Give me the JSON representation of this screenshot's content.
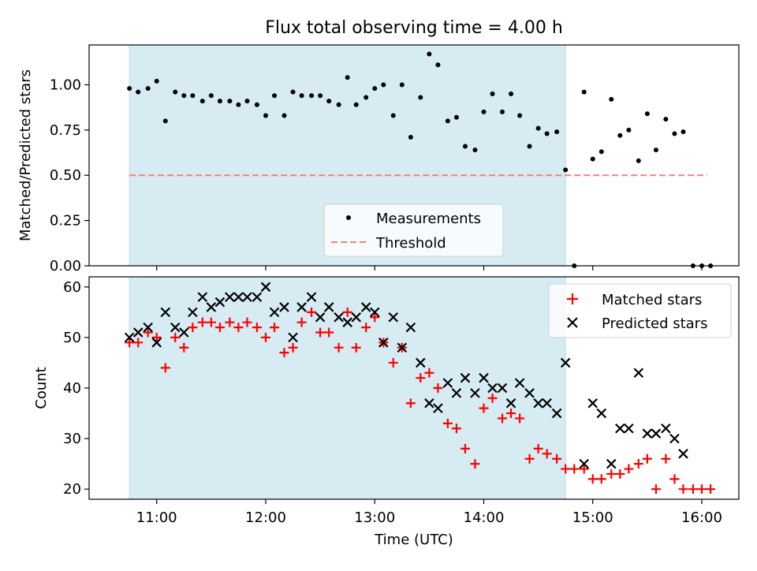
{
  "chart_data": {
    "type": "scatter",
    "title": "Flux total observing time = 4.00 h",
    "xlabel": "Time (UTC)",
    "x_unit": "decimal hours UTC",
    "xlim": [
      10.38,
      16.34
    ],
    "x_ticks": [
      {
        "value": 11,
        "label": "11:00"
      },
      {
        "value": 12,
        "label": "12:00"
      },
      {
        "value": 13,
        "label": "13:00"
      },
      {
        "value": 14,
        "label": "14:00"
      },
      {
        "value": 15,
        "label": "15:00"
      },
      {
        "value": 16,
        "label": "16:00"
      }
    ],
    "observing_window": {
      "start": 10.75,
      "end": 14.75,
      "color": "#add8e6"
    },
    "panels": [
      {
        "id": "ratio",
        "ylabel": "Matched/Predicted stars",
        "ylim": [
          0,
          1.22
        ],
        "y_ticks": [
          {
            "value": 0,
            "label": "0.00"
          },
          {
            "value": 0.25,
            "label": "0.25"
          },
          {
            "value": 0.5,
            "label": "0.50"
          },
          {
            "value": 0.75,
            "label": "0.75"
          },
          {
            "value": 1.0,
            "label": "1.00"
          }
        ],
        "legend": {
          "position": "lower-center",
          "entries": [
            "Measurements",
            "Threshold"
          ]
        },
        "threshold": {
          "name": "Threshold",
          "value": 0.5,
          "x_start": 10.75,
          "x_end": 16.05,
          "color": "#f08080"
        },
        "series": [
          {
            "name": "Measurements",
            "color": "#000000",
            "marker": "dot",
            "x": [
              10.75,
              10.83,
              10.92,
              11.0,
              11.08,
              11.17,
              11.25,
              11.33,
              11.42,
              11.5,
              11.58,
              11.67,
              11.75,
              11.83,
              11.92,
              12.0,
              12.08,
              12.17,
              12.25,
              12.33,
              12.42,
              12.5,
              12.58,
              12.67,
              12.75,
              12.83,
              12.92,
              13.0,
              13.08,
              13.17,
              13.25,
              13.33,
              13.42,
              13.5,
              13.58,
              13.67,
              13.75,
              13.83,
              13.92,
              14.0,
              14.08,
              14.17,
              14.25,
              14.33,
              14.42,
              14.5,
              14.58,
              14.67,
              14.75,
              14.83,
              14.92,
              15.0,
              15.08,
              15.17,
              15.25,
              15.33,
              15.42,
              15.5,
              15.58,
              15.67,
              15.75,
              15.83,
              15.92,
              16.0,
              16.08
            ],
            "y": [
              0.98,
              0.96,
              0.98,
              1.02,
              0.8,
              0.96,
              0.94,
              0.94,
              0.91,
              0.94,
              0.91,
              0.91,
              0.89,
              0.91,
              0.89,
              0.83,
              0.94,
              0.83,
              0.96,
              0.94,
              0.94,
              0.94,
              0.91,
              0.89,
              1.04,
              0.89,
              0.93,
              0.98,
              1.0,
              0.83,
              1.0,
              0.71,
              0.93,
              1.17,
              1.11,
              0.8,
              0.82,
              0.66,
              0.64,
              0.85,
              0.95,
              0.85,
              0.95,
              0.83,
              0.66,
              0.76,
              0.73,
              0.74,
              0.53,
              0.0,
              0.96,
              0.59,
              0.63,
              0.92,
              0.72,
              0.75,
              0.58,
              0.84,
              0.64,
              0.81,
              0.73,
              0.74,
              0.0,
              0.0,
              0.0
            ]
          }
        ]
      },
      {
        "id": "counts",
        "ylabel": "Count",
        "ylim": [
          18,
          62
        ],
        "y_ticks": [
          {
            "value": 20,
            "label": "20"
          },
          {
            "value": 30,
            "label": "30"
          },
          {
            "value": 40,
            "label": "40"
          },
          {
            "value": 50,
            "label": "50"
          },
          {
            "value": 60,
            "label": "60"
          }
        ],
        "legend": {
          "position": "top-right",
          "entries": [
            "Matched stars",
            "Predicted stars"
          ]
        },
        "series": [
          {
            "name": "Matched stars",
            "color": "#ff0000",
            "marker": "plus",
            "x": [
              10.75,
              10.83,
              10.92,
              11.0,
              11.08,
              11.17,
              11.25,
              11.33,
              11.42,
              11.5,
              11.58,
              11.67,
              11.75,
              11.83,
              11.92,
              12.0,
              12.08,
              12.17,
              12.25,
              12.33,
              12.42,
              12.5,
              12.58,
              12.67,
              12.75,
              12.83,
              12.92,
              13.0,
              13.08,
              13.17,
              13.25,
              13.33,
              13.42,
              13.5,
              13.58,
              13.67,
              13.75,
              13.83,
              13.92,
              14.0,
              14.08,
              14.17,
              14.25,
              14.33,
              14.42,
              14.5,
              14.58,
              14.67,
              14.75,
              14.83,
              14.92,
              15.0,
              15.08,
              15.17,
              15.25,
              15.33,
              15.42,
              15.5,
              15.58,
              15.67,
              15.75,
              15.83,
              15.92,
              16.0,
              16.08
            ],
            "y": [
              49,
              49,
              51,
              50,
              44,
              50,
              48,
              52,
              53,
              53,
              52,
              53,
              52,
              53,
              52,
              50,
              52,
              47,
              48,
              53,
              55,
              51,
              51,
              48,
              55,
              48,
              52,
              54,
              49,
              45,
              48,
              37,
              42,
              43,
              40,
              33,
              32,
              28,
              25,
              36,
              38,
              34,
              35,
              34,
              26,
              28,
              27,
              26,
              24,
              24,
              24,
              22,
              22,
              23,
              23,
              24,
              25,
              26,
              20,
              26,
              22,
              20,
              20,
              20,
              20
            ]
          },
          {
            "name": "Predicted stars",
            "color": "#000000",
            "marker": "x",
            "x": [
              10.75,
              10.83,
              10.92,
              11.0,
              11.08,
              11.17,
              11.25,
              11.33,
              11.42,
              11.5,
              11.58,
              11.67,
              11.75,
              11.83,
              11.92,
              12.0,
              12.08,
              12.17,
              12.25,
              12.33,
              12.42,
              12.5,
              12.58,
              12.67,
              12.75,
              12.83,
              12.92,
              13.0,
              13.08,
              13.17,
              13.25,
              13.33,
              13.42,
              13.5,
              13.58,
              13.67,
              13.75,
              13.83,
              13.92,
              14.0,
              14.08,
              14.17,
              14.25,
              14.33,
              14.42,
              14.5,
              14.58,
              14.67,
              14.75,
              14.92,
              15.0,
              15.08,
              15.17,
              15.25,
              15.33,
              15.42,
              15.5,
              15.58,
              15.67,
              15.75,
              15.83
            ],
            "y": [
              50,
              51,
              52,
              49,
              55,
              52,
              51,
              55,
              58,
              56,
              57,
              58,
              58,
              58,
              58,
              60,
              55,
              56,
              50,
              56,
              58,
              54,
              56,
              54,
              53,
              54,
              56,
              55,
              49,
              54,
              48,
              52,
              45,
              37,
              36,
              41,
              39,
              42,
              39,
              42,
              40,
              40,
              37,
              41,
              39,
              37,
              37,
              35,
              45,
              25,
              37,
              35,
              25,
              32,
              32,
              43,
              31,
              31,
              32,
              30,
              27
            ]
          }
        ]
      }
    ]
  }
}
